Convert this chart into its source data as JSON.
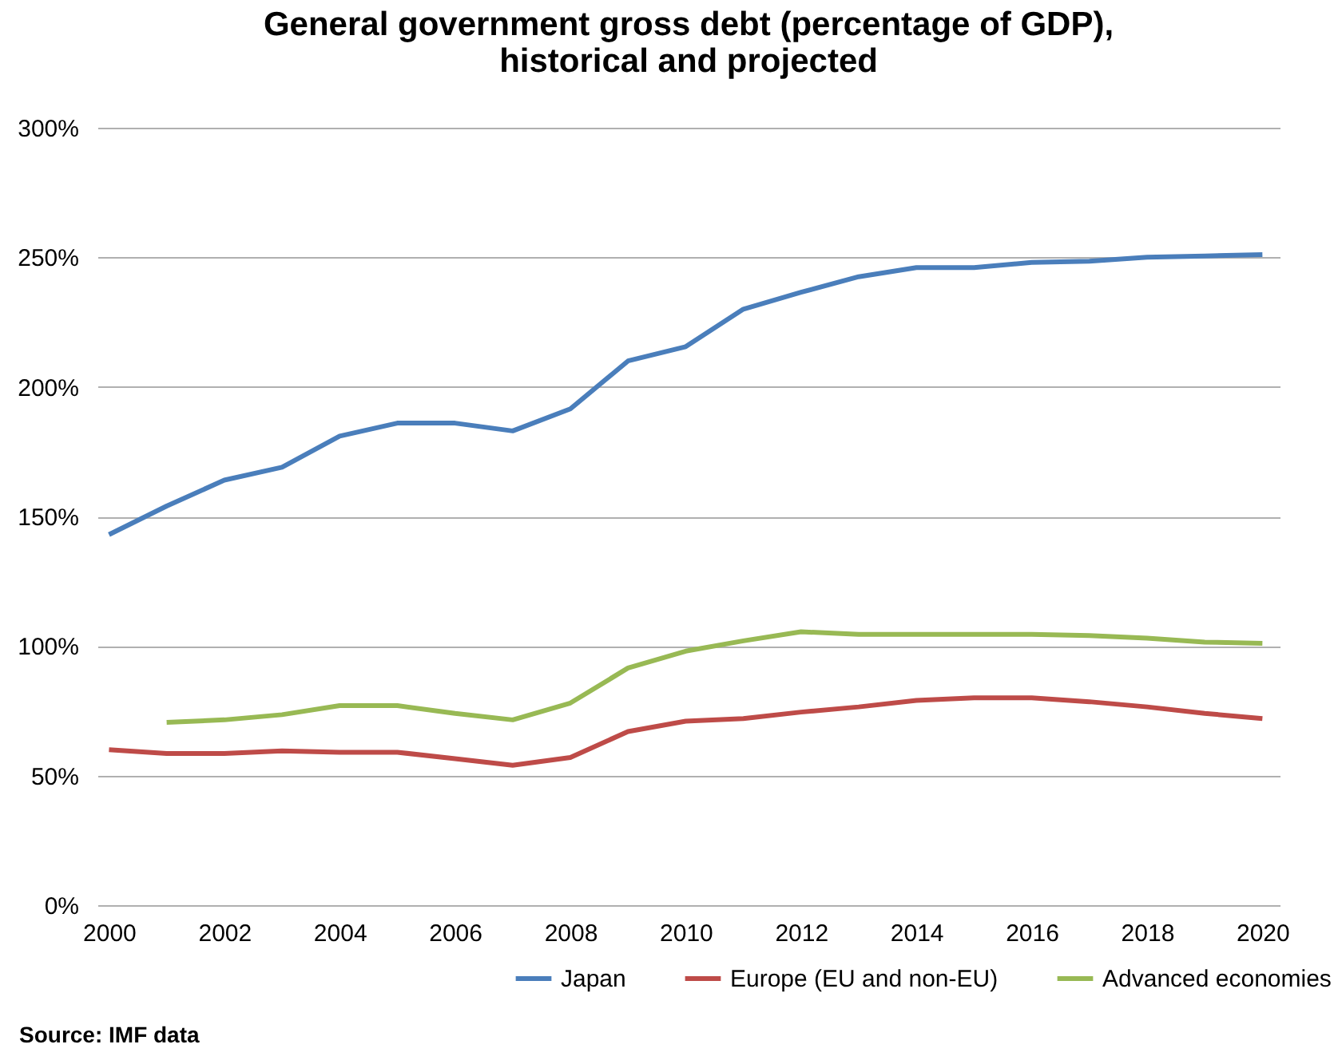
{
  "chart_data": {
    "type": "line",
    "title": "General government gross debt (percentage of GDP),\nhistorical and projected",
    "x": [
      2000,
      2001,
      2002,
      2003,
      2004,
      2005,
      2006,
      2007,
      2008,
      2009,
      2010,
      2011,
      2012,
      2013,
      2014,
      2015,
      2016,
      2017,
      2018,
      2019,
      2020
    ],
    "series": [
      {
        "name": "Japan",
        "color": "#4a7ebb",
        "values": [
          143,
          154,
          164,
          169,
          181,
          186,
          186,
          183,
          191.5,
          210,
          215.5,
          230,
          236.5,
          242.5,
          246,
          246,
          248,
          248.5,
          250,
          250.5,
          251
        ]
      },
      {
        "name": "Europe (EU and non-EU)",
        "color": "#be4b48",
        "values": [
          60,
          58.5,
          58.5,
          59.5,
          59,
          59,
          56.5,
          54,
          57,
          67,
          71,
          72,
          74.5,
          76.5,
          79,
          80,
          80,
          78.5,
          76.5,
          74,
          72
        ]
      },
      {
        "name": "Advanced economies",
        "color": "#98b954",
        "values": [
          null,
          70.5,
          71.5,
          73.5,
          77,
          77,
          74,
          71.5,
          78,
          91.5,
          98,
          102,
          105.5,
          104.5,
          104.5,
          104.5,
          104.5,
          104,
          103,
          101.5,
          101
        ]
      }
    ],
    "xlim": [
      1999.8,
      2020.3
    ],
    "xticks": [
      2000,
      2002,
      2004,
      2006,
      2008,
      2010,
      2012,
      2014,
      2016,
      2018,
      2020
    ],
    "ylim": [
      0,
      300
    ],
    "yticks": [
      {
        "value": 0,
        "label": "0%"
      },
      {
        "value": 50,
        "label": "50%"
      },
      {
        "value": 100,
        "label": "100%"
      },
      {
        "value": 150,
        "label": "150%"
      },
      {
        "value": 200,
        "label": "200%"
      },
      {
        "value": 250,
        "label": "250%"
      },
      {
        "value": 300,
        "label": "300%"
      }
    ],
    "grid": "y",
    "legend": "bottom",
    "line_style": "solid",
    "marker": "none",
    "annotations": [
      "Source: IMF data"
    ]
  }
}
